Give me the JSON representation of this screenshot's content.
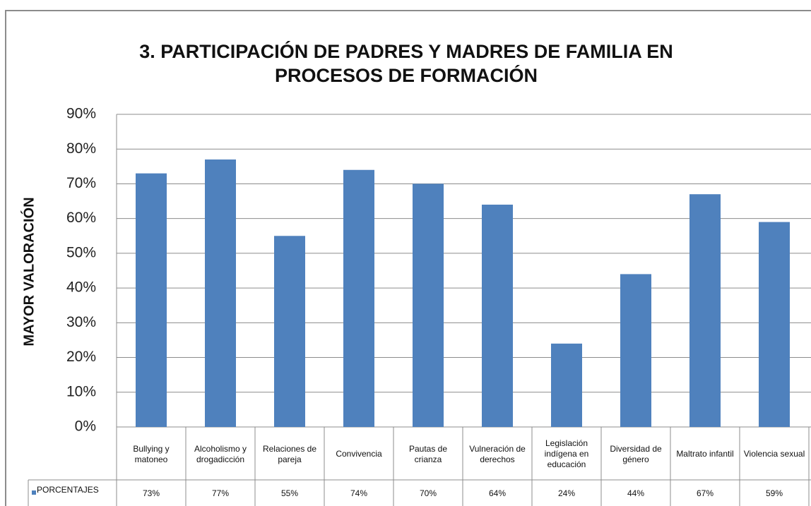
{
  "chart_data": {
    "type": "bar",
    "title": [
      "3. PARTICIPACIÓN DE PADRES Y MADRES DE FAMILIA EN",
      "PROCESOS DE FORMACIÓN"
    ],
    "y_label": "MAYOR VALORACIÓN",
    "categories": [
      "Bullying y matoneo",
      "Alcoholismo y drogadicción",
      "Relaciones de pareja",
      "Convivencia",
      "Pautas de crianza",
      "Vulneración de derechos",
      "Legislación indígena en educación",
      "Diversidad de género",
      "Maltrato infantil",
      "Violencia sexual"
    ],
    "series": [
      {
        "name": "PORCENTAJES",
        "color": "#4f81bd",
        "values": [
          73,
          77,
          55,
          74,
          70,
          64,
          24,
          44,
          67,
          59
        ],
        "value_labels": [
          "73%",
          "77%",
          "55%",
          "74%",
          "70%",
          "64%",
          "24%",
          "44%",
          "67%",
          "59%"
        ]
      }
    ],
    "ylim": [
      0,
      90
    ],
    "yticks": [
      {
        "value": 0,
        "label": "0%"
      },
      {
        "value": 10,
        "label": "10%"
      },
      {
        "value": 20,
        "label": "20%"
      },
      {
        "value": 30,
        "label": "30%"
      },
      {
        "value": 40,
        "label": "40%"
      },
      {
        "value": 50,
        "label": "50%"
      },
      {
        "value": 60,
        "label": "60%"
      },
      {
        "value": 70,
        "label": "70%"
      },
      {
        "value": 80,
        "label": "80%"
      },
      {
        "value": 90,
        "label": "90%"
      }
    ],
    "grid": true
  }
}
